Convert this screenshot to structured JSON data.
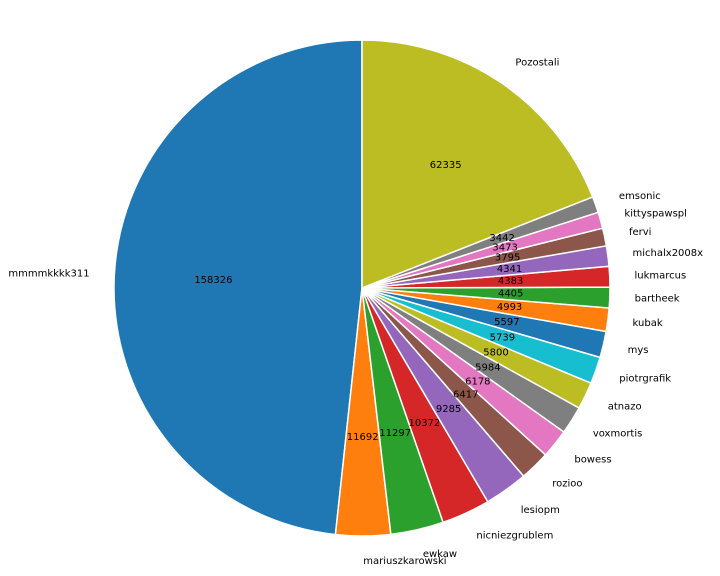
{
  "chart_data": {
    "type": "pie",
    "start_angle_deg": 90,
    "direction": "counterclockwise",
    "value_labels": "raw values",
    "slices": [
      {
        "label": "mmmmkkkk311",
        "value": 158326,
        "color": "#1f77b4"
      },
      {
        "label": "mariuszkarowski",
        "value": 11692,
        "color": "#ff7f0e"
      },
      {
        "label": "ewkaw",
        "value": 11297,
        "color": "#2ca02c"
      },
      {
        "label": "nicniezgrublem",
        "value": 10372,
        "color": "#d62728"
      },
      {
        "label": "lesiopm",
        "value": 9285,
        "color": "#9467bd"
      },
      {
        "label": "rozioo",
        "value": 6417,
        "color": "#8c564b"
      },
      {
        "label": "bowess",
        "value": 6178,
        "color": "#e377c2"
      },
      {
        "label": "voxmortis",
        "value": 5984,
        "color": "#7f7f7f"
      },
      {
        "label": "atnazo",
        "value": 5800,
        "color": "#bcbd22"
      },
      {
        "label": "piotrgrafik",
        "value": 5739,
        "color": "#17becf"
      },
      {
        "label": "mys",
        "value": 5597,
        "color": "#1f77b4"
      },
      {
        "label": "kubak",
        "value": 4993,
        "color": "#ff7f0e"
      },
      {
        "label": "bartheek",
        "value": 4405,
        "color": "#2ca02c"
      },
      {
        "label": "lukmarcus",
        "value": 4383,
        "color": "#d62728"
      },
      {
        "label": "michalx2008x",
        "value": 4341,
        "color": "#9467bd"
      },
      {
        "label": "fervi",
        "value": 3795,
        "color": "#8c564b"
      },
      {
        "label": "kittyspawspl",
        "value": 3473,
        "color": "#e377c2"
      },
      {
        "label": "emsonic",
        "value": 3442,
        "color": "#7f7f7f"
      },
      {
        "label": "Pozostali",
        "value": 62335,
        "color": "#bcbd22"
      }
    ]
  }
}
